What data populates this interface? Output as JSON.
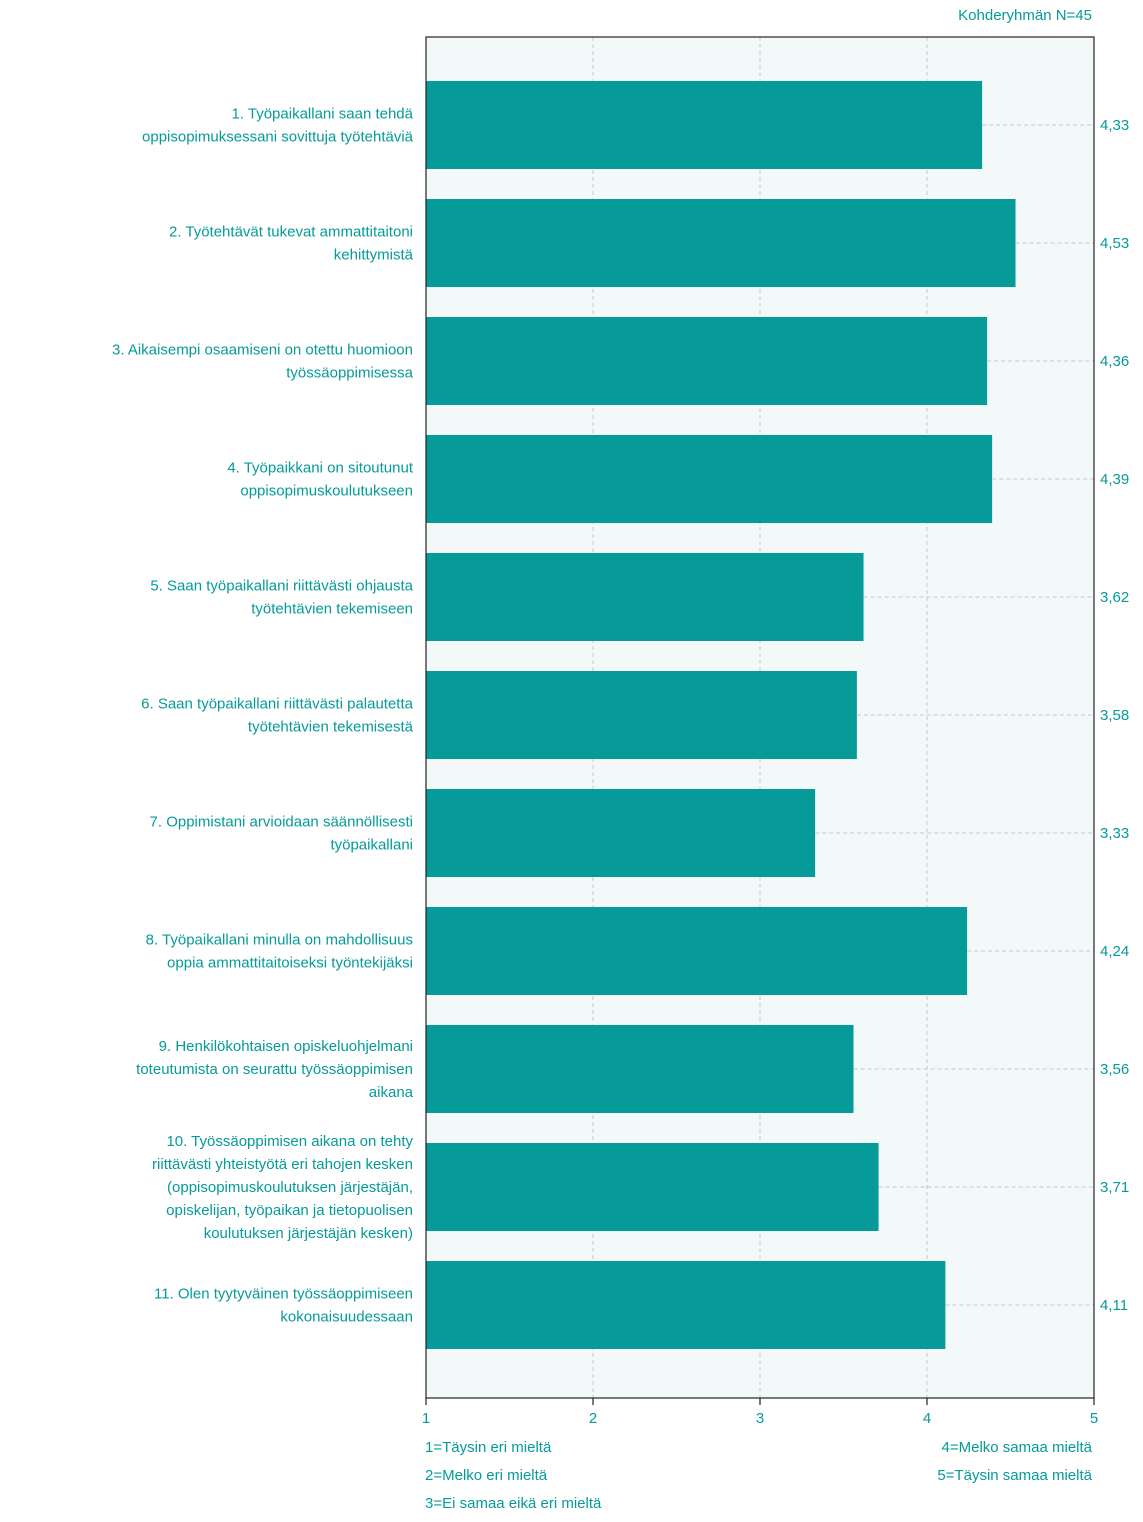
{
  "header": {
    "group_n": "Kohderyhmän N=45"
  },
  "colors": {
    "bar": "#069b98",
    "text": "#069b98",
    "plot_bg": "#f3f9f9",
    "frame": "#222222",
    "grid": "#c8c8c8"
  },
  "legend": {
    "left": [
      "1=Täysin eri mieltä",
      "2=Melko eri mieltä",
      "3=Ei samaa eikä eri mieltä"
    ],
    "right": [
      "4=Melko samaa mieltä",
      "5=Täysin samaa mieltä"
    ]
  },
  "chart_data": {
    "type": "bar",
    "orientation": "horizontal",
    "xlim": [
      1,
      5
    ],
    "xticks": [
      "1",
      "2",
      "3",
      "4",
      "5"
    ],
    "grid": true,
    "categories": [
      [
        "1. Työpaikallani saan tehdä",
        "oppisopimuksessani sovittuja työtehtäviä"
      ],
      [
        "2. Työtehtävät tukevat ammattitaitoni",
        "kehittymistä"
      ],
      [
        "3. Aikaisempi osaamiseni on otettu huomioon",
        "työssäoppimisessa"
      ],
      [
        "4. Työpaikkani on sitoutunut",
        "oppisopimuskoulutukseen"
      ],
      [
        "5. Saan työpaikallani riittävästi ohjausta",
        "työtehtävien tekemiseen"
      ],
      [
        "6. Saan työpaikallani riittävästi palautetta",
        "työtehtävien tekemisestä"
      ],
      [
        "7. Oppimistani arvioidaan säännöllisesti",
        "työpaikallani"
      ],
      [
        "8. Työpaikallani minulla on mahdollisuus",
        "oppia ammattitaitoiseksi työntekijäksi"
      ],
      [
        "9. Henkilökohtaisen opiskeluohjelmani",
        "toteutumista on seurattu työssäoppimisen",
        "aikana"
      ],
      [
        "10. Työssäoppimisen aikana on tehty",
        "riittävästi yhteistyötä eri tahojen kesken",
        "(oppisopimuskoulutuksen järjestäjän,",
        "opiskelijan, työpaikan ja tietopuolisen",
        "koulutuksen järjestäjän kesken)"
      ],
      [
        "11. Olen tyytyväinen työssäoppimiseen",
        "kokonaisuudessaan"
      ]
    ],
    "values": [
      4.33,
      4.53,
      4.36,
      4.39,
      3.62,
      3.58,
      3.33,
      4.24,
      3.56,
      3.71,
      4.11
    ],
    "value_labels": [
      "4,33",
      "4,53",
      "4,36",
      "4,39",
      "3,62",
      "3,58",
      "3,33",
      "4,24",
      "3,56",
      "3,71",
      "4,11"
    ]
  }
}
